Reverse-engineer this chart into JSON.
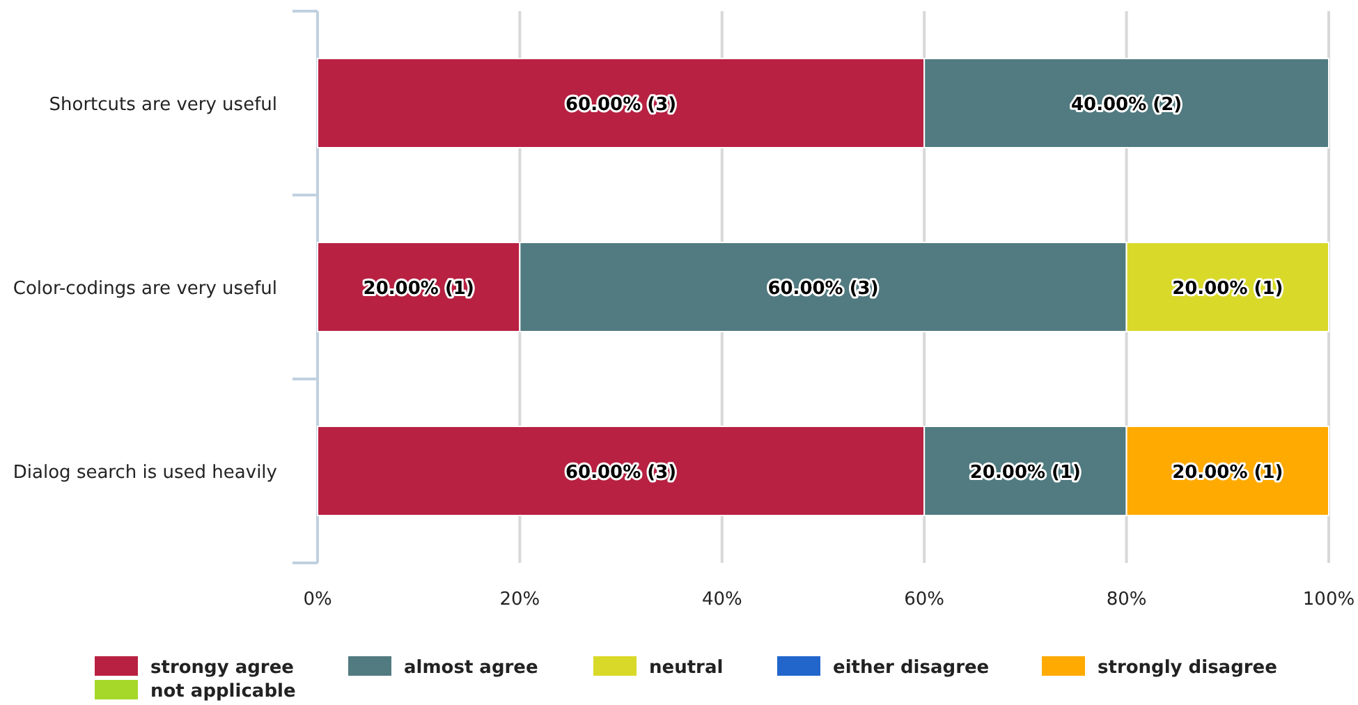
{
  "chart_data": {
    "type": "bar",
    "orientation": "horizontal",
    "stacked": true,
    "categories": [
      "Shortcuts are very useful",
      "Color-codings are very useful",
      "Dialog search is used heavily"
    ],
    "series": [
      {
        "name": "strongy agree",
        "color": "#b82142",
        "values": [
          60,
          20,
          60
        ],
        "value_labels": [
          "60.00% (3)",
          "20.00% (1)",
          "60.00% (3)"
        ]
      },
      {
        "name": "almost agree",
        "color": "#517b80",
        "values": [
          40,
          60,
          20
        ],
        "value_labels": [
          "40.00% (2)",
          "60.00% (3)",
          "20.00% (1)"
        ]
      },
      {
        "name": "neutral",
        "color": "#d9d92a",
        "values": [
          0,
          20,
          0
        ],
        "value_labels": [
          null,
          "20.00% (1)",
          null
        ]
      },
      {
        "name": "either disagree",
        "color": "#2266cc",
        "values": [
          0,
          0,
          0
        ],
        "value_labels": [
          null,
          null,
          null
        ]
      },
      {
        "name": "strongly disagree",
        "color": "#ffaa00",
        "values": [
          0,
          0,
          20
        ],
        "value_labels": [
          null,
          null,
          "20.00% (1)"
        ]
      },
      {
        "name": "not applicable",
        "color": "#a6d82a",
        "values": [
          0,
          0,
          0
        ],
        "value_labels": [
          null,
          null,
          null
        ]
      }
    ],
    "xlim": [
      0,
      100
    ],
    "xticks": [
      {
        "value": 0,
        "label": "0%"
      },
      {
        "value": 20,
        "label": "20%"
      },
      {
        "value": 40,
        "label": "40%"
      },
      {
        "value": 60,
        "label": "60%"
      },
      {
        "value": 80,
        "label": "80%"
      },
      {
        "value": 100,
        "label": "100%"
      }
    ],
    "grid": "x",
    "legend": "bottom"
  }
}
